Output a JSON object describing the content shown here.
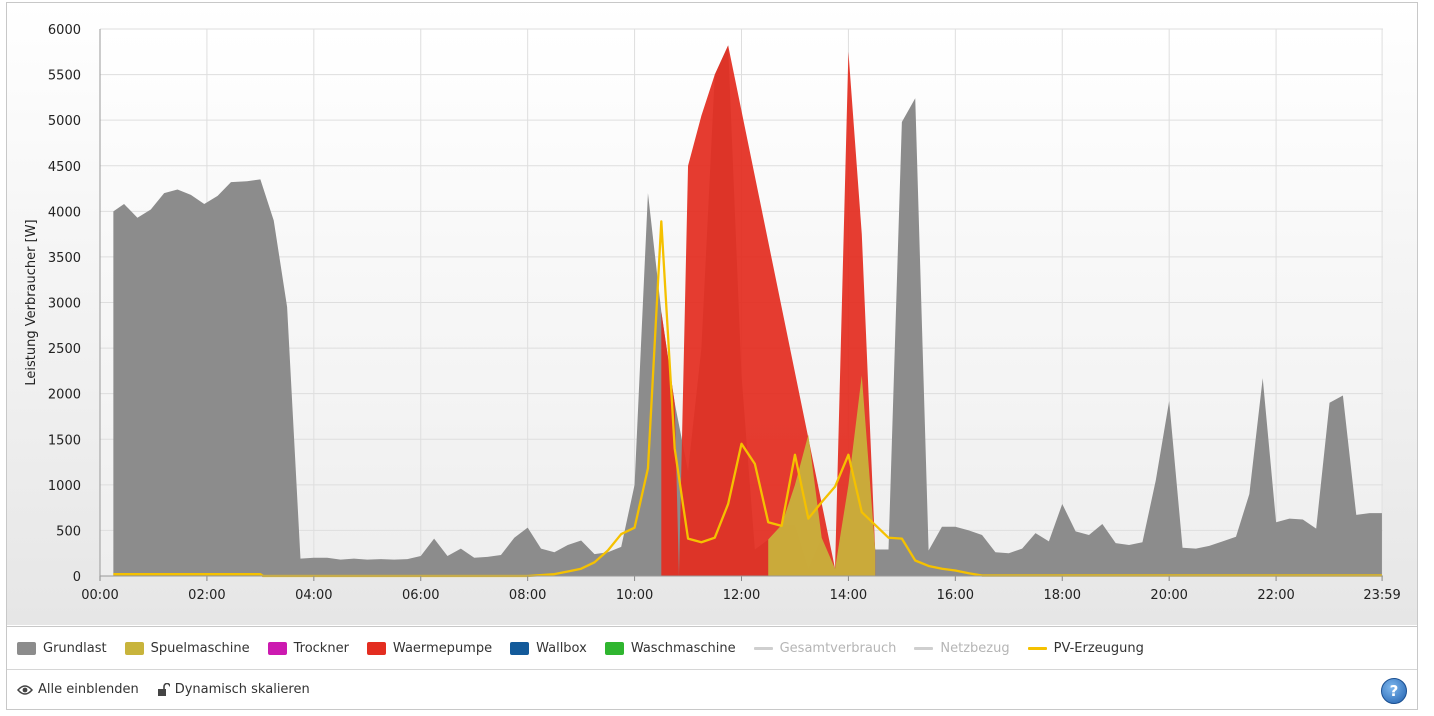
{
  "chart_data": {
    "type": "area",
    "ylabel": "Leistung Verbraucher [W]",
    "ylim": [
      0,
      6000
    ],
    "y_ticks": [
      "0",
      "500",
      "1000",
      "1500",
      "2000",
      "2500",
      "3000",
      "3500",
      "4000",
      "4500",
      "5000",
      "5500",
      "6000"
    ],
    "xlim_hours": [
      0,
      24
    ],
    "x_ticks": [
      {
        "label": "00:00",
        "hour": 0
      },
      {
        "label": "02:00",
        "hour": 2
      },
      {
        "label": "04:00",
        "hour": 4
      },
      {
        "label": "06:00",
        "hour": 6
      },
      {
        "label": "08:00",
        "hour": 8
      },
      {
        "label": "10:00",
        "hour": 10
      },
      {
        "label": "12:00",
        "hour": 12
      },
      {
        "label": "14:00",
        "hour": 14
      },
      {
        "label": "16:00",
        "hour": 16
      },
      {
        "label": "18:00",
        "hour": 18
      },
      {
        "label": "20:00",
        "hour": 20
      },
      {
        "label": "22:00",
        "hour": 22
      },
      {
        "label": "23:59",
        "hour": 23.983
      }
    ],
    "grid": true,
    "legend_position": "bottom",
    "series": [
      {
        "name": "Grundlast",
        "kind": "area",
        "color": "#8c8c8c",
        "points": [
          [
            0.25,
            4000
          ],
          [
            0.45,
            4080
          ],
          [
            0.7,
            3930
          ],
          [
            0.95,
            4020
          ],
          [
            1.2,
            4200
          ],
          [
            1.45,
            4240
          ],
          [
            1.7,
            4180
          ],
          [
            1.95,
            4080
          ],
          [
            2.2,
            4170
          ],
          [
            2.45,
            4320
          ],
          [
            2.75,
            4330
          ],
          [
            3.0,
            4350
          ],
          [
            3.25,
            3900
          ],
          [
            3.5,
            2950
          ],
          [
            3.75,
            190
          ],
          [
            4.0,
            200
          ],
          [
            4.25,
            200
          ],
          [
            4.5,
            180
          ],
          [
            4.75,
            190
          ],
          [
            5.0,
            180
          ],
          [
            5.25,
            185
          ],
          [
            5.5,
            180
          ],
          [
            5.75,
            185
          ],
          [
            6.0,
            220
          ],
          [
            6.25,
            410
          ],
          [
            6.5,
            220
          ],
          [
            6.75,
            300
          ],
          [
            7.0,
            200
          ],
          [
            7.25,
            210
          ],
          [
            7.5,
            230
          ],
          [
            7.75,
            420
          ],
          [
            8.0,
            530
          ],
          [
            8.25,
            300
          ],
          [
            8.5,
            260
          ],
          [
            8.75,
            340
          ],
          [
            9.0,
            390
          ],
          [
            9.25,
            240
          ],
          [
            9.5,
            260
          ],
          [
            9.75,
            320
          ],
          [
            10.0,
            1000
          ],
          [
            10.25,
            4200
          ],
          [
            10.5,
            2900
          ],
          [
            10.75,
            1900
          ],
          [
            11.0,
            1150
          ],
          [
            11.25,
            2500
          ],
          [
            11.5,
            5500
          ],
          [
            11.75,
            5820
          ],
          [
            12.0,
            2200
          ],
          [
            12.25,
            290
          ],
          [
            12.5,
            400
          ],
          [
            12.75,
            560
          ],
          [
            13.0,
            560
          ],
          [
            13.25,
            80
          ],
          [
            13.5,
            420
          ],
          [
            13.75,
            80
          ],
          [
            14.0,
            1000
          ],
          [
            14.25,
            2000
          ],
          [
            14.5,
            290
          ],
          [
            14.75,
            290
          ],
          [
            15.0,
            4980
          ],
          [
            15.25,
            5240
          ],
          [
            15.5,
            280
          ],
          [
            15.75,
            540
          ],
          [
            16.0,
            540
          ],
          [
            16.25,
            500
          ],
          [
            16.5,
            450
          ],
          [
            16.75,
            260
          ],
          [
            17.0,
            250
          ],
          [
            17.25,
            300
          ],
          [
            17.5,
            470
          ],
          [
            17.75,
            380
          ],
          [
            18.0,
            790
          ],
          [
            18.25,
            490
          ],
          [
            18.5,
            450
          ],
          [
            18.75,
            570
          ],
          [
            19.0,
            360
          ],
          [
            19.25,
            340
          ],
          [
            19.5,
            370
          ],
          [
            19.75,
            1050
          ],
          [
            20.0,
            1920
          ],
          [
            20.25,
            310
          ],
          [
            20.5,
            300
          ],
          [
            20.75,
            330
          ],
          [
            21.0,
            380
          ],
          [
            21.25,
            430
          ],
          [
            21.5,
            900
          ],
          [
            21.75,
            2170
          ],
          [
            22.0,
            590
          ],
          [
            22.25,
            630
          ],
          [
            22.5,
            620
          ],
          [
            22.75,
            520
          ],
          [
            23.0,
            1900
          ],
          [
            23.25,
            1980
          ],
          [
            23.5,
            670
          ],
          [
            23.75,
            690
          ],
          [
            23.98,
            690
          ]
        ]
      },
      {
        "name": "Spuelmaschine",
        "kind": "area",
        "color": "#c8b43c",
        "points": [
          [
            12.5,
            400
          ],
          [
            12.75,
            560
          ],
          [
            13.0,
            1000
          ],
          [
            13.25,
            1550
          ],
          [
            13.5,
            420
          ],
          [
            13.75,
            80
          ],
          [
            14.0,
            1000
          ],
          [
            14.25,
            2200
          ],
          [
            14.5,
            290
          ]
        ]
      },
      {
        "name": "Trockner",
        "kind": "area",
        "color": "#cc1ab0",
        "points": []
      },
      {
        "name": "Waermepumpe",
        "kind": "area",
        "color": "#e32d20",
        "points": [
          [
            10.5,
            2900
          ],
          [
            10.75,
            1900
          ],
          [
            10.83,
            0
          ],
          [
            11.0,
            4500
          ],
          [
            11.25,
            5050
          ],
          [
            11.5,
            5500
          ],
          [
            11.75,
            5820
          ],
          [
            13.75,
            80
          ],
          [
            14.0,
            5750
          ],
          [
            14.25,
            3750
          ],
          [
            14.5,
            290
          ]
        ]
      },
      {
        "name": "Wallbox",
        "kind": "area",
        "color": "#135a9a",
        "points": []
      },
      {
        "name": "Waschmaschine",
        "kind": "area",
        "color": "#2fb52f",
        "points": []
      },
      {
        "name": "Gesamtverbrauch",
        "kind": "line",
        "color": "#c8c8c8",
        "hidden": true,
        "points": []
      },
      {
        "name": "Netzbezug",
        "kind": "line",
        "color": "#c8c8c8",
        "hidden": true,
        "points": []
      },
      {
        "name": "PV-Erzeugung",
        "kind": "line",
        "color": "#f5c100",
        "points": [
          [
            0.25,
            20
          ],
          [
            3.0,
            20
          ],
          [
            3.05,
            0
          ],
          [
            8.0,
            0
          ],
          [
            8.5,
            20
          ],
          [
            8.75,
            50
          ],
          [
            9.0,
            80
          ],
          [
            9.25,
            150
          ],
          [
            9.5,
            280
          ],
          [
            9.75,
            460
          ],
          [
            10.0,
            530
          ],
          [
            10.25,
            1180
          ],
          [
            10.5,
            3890
          ],
          [
            10.75,
            1400
          ],
          [
            11.0,
            410
          ],
          [
            11.25,
            370
          ],
          [
            11.5,
            420
          ],
          [
            11.75,
            790
          ],
          [
            12.0,
            1450
          ],
          [
            12.25,
            1230
          ],
          [
            12.5,
            590
          ],
          [
            12.75,
            550
          ],
          [
            13.0,
            1330
          ],
          [
            13.25,
            630
          ],
          [
            13.5,
            810
          ],
          [
            13.75,
            980
          ],
          [
            14.0,
            1330
          ],
          [
            14.25,
            700
          ],
          [
            14.5,
            560
          ],
          [
            14.75,
            420
          ],
          [
            15.0,
            410
          ],
          [
            15.25,
            170
          ],
          [
            15.5,
            110
          ],
          [
            15.75,
            80
          ],
          [
            16.0,
            60
          ],
          [
            16.25,
            30
          ],
          [
            16.5,
            5
          ],
          [
            23.98,
            5
          ]
        ]
      }
    ]
  },
  "legend": {
    "items": [
      {
        "label": "Grundlast",
        "color": "#8c8c8c",
        "type": "box",
        "disabled": false
      },
      {
        "label": "Spuelmaschine",
        "color": "#c8b43c",
        "type": "box",
        "disabled": false
      },
      {
        "label": "Trockner",
        "color": "#cc1ab0",
        "type": "box",
        "disabled": false
      },
      {
        "label": "Waermepumpe",
        "color": "#e32d20",
        "type": "box",
        "disabled": false
      },
      {
        "label": "Wallbox",
        "color": "#135a9a",
        "type": "box",
        "disabled": false
      },
      {
        "label": "Waschmaschine",
        "color": "#2fb52f",
        "type": "box",
        "disabled": false
      },
      {
        "label": "Gesamtverbrauch",
        "color": "#cfcfcf",
        "type": "line",
        "disabled": true
      },
      {
        "label": "Netzbezug",
        "color": "#cfcfcf",
        "type": "line",
        "disabled": true
      },
      {
        "label": "PV-Erzeugung",
        "color": "#f5c100",
        "type": "line",
        "disabled": false
      }
    ]
  },
  "footer": {
    "show_all_label": "Alle einblenden",
    "dynamic_scale_label": "Dynamisch skalieren",
    "help_label": "?"
  }
}
